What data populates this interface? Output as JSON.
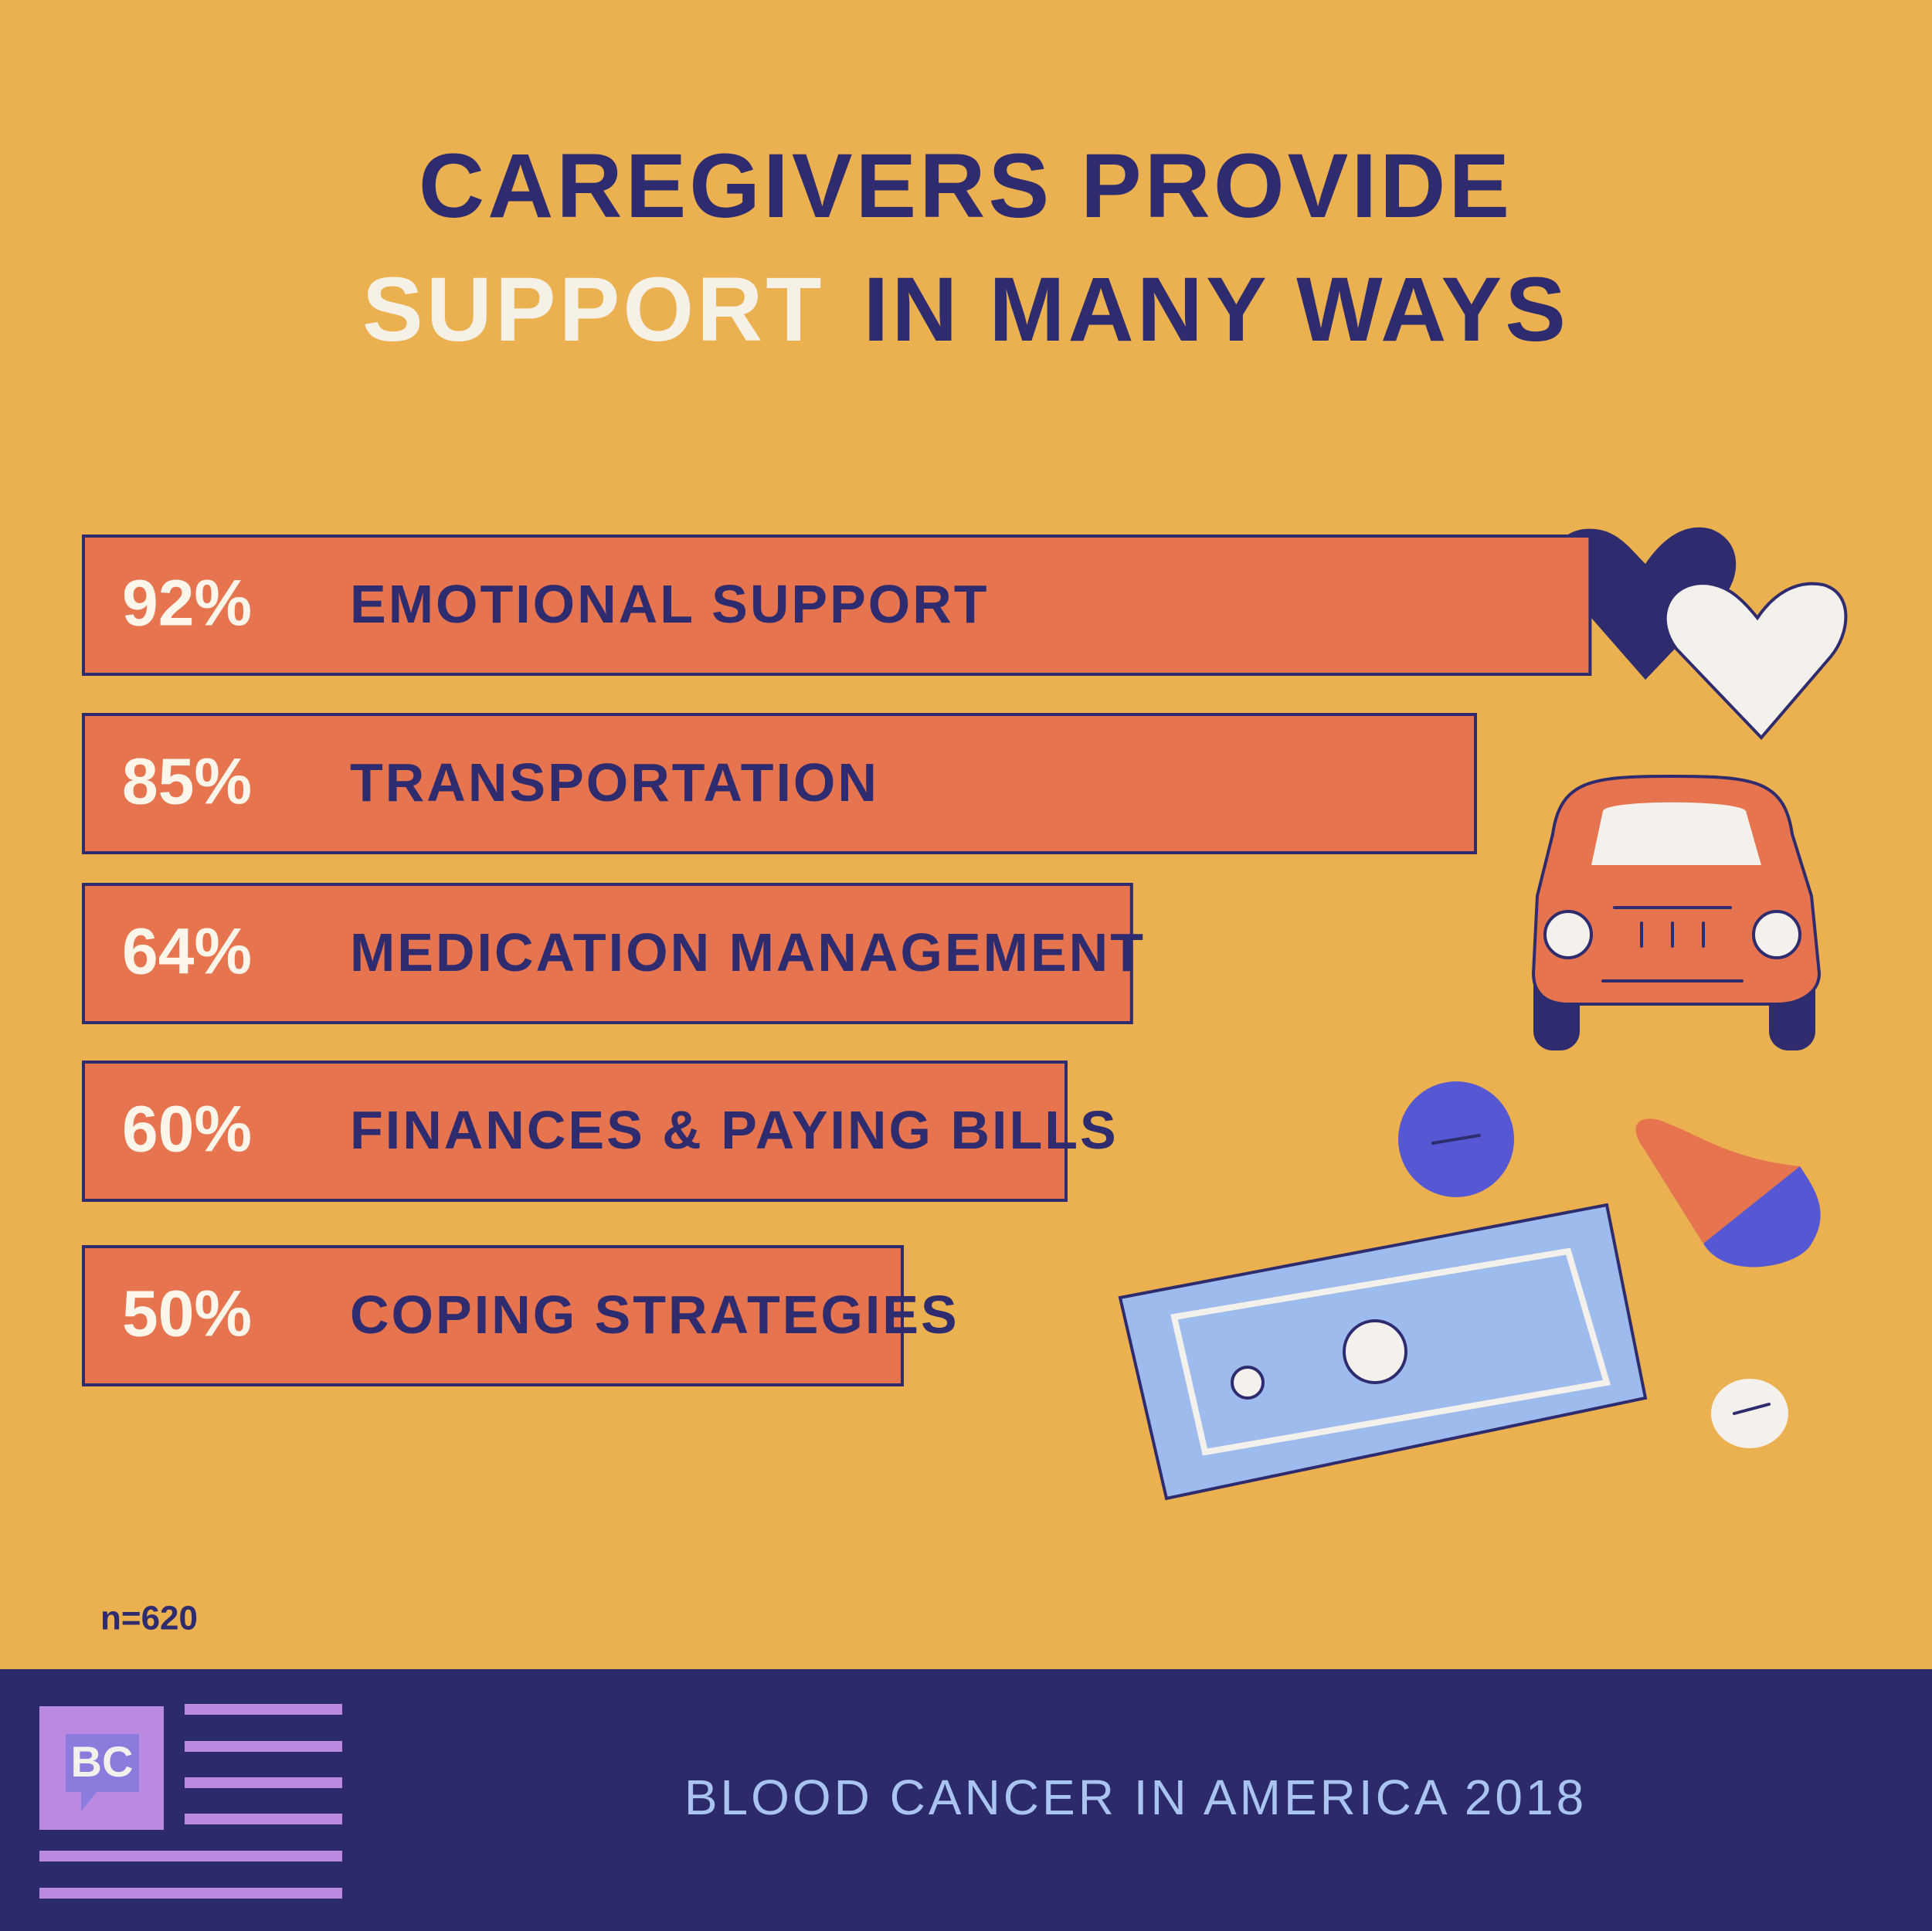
{
  "chart_data": {
    "type": "bar",
    "orientation": "horizontal",
    "title": [
      "CAREGIVERS PROVIDE",
      "SUPPORT",
      "IN MANY WAYS"
    ],
    "categories": [
      "EMOTIONAL SUPPORT",
      "TRANSPORTATION",
      "MEDICATION MANAGEMENT",
      "FINANCES & PAYING BILLS",
      "COPING STRATEGIES"
    ],
    "values": [
      92,
      85,
      64,
      60,
      50
    ],
    "value_labels": [
      "92%",
      "85%",
      "64%",
      "60%",
      "50%"
    ],
    "color": "#e5744f",
    "note": "n=620",
    "footer": "BLOOD CANCER IN AMERICA 2018",
    "logo": "BC"
  }
}
